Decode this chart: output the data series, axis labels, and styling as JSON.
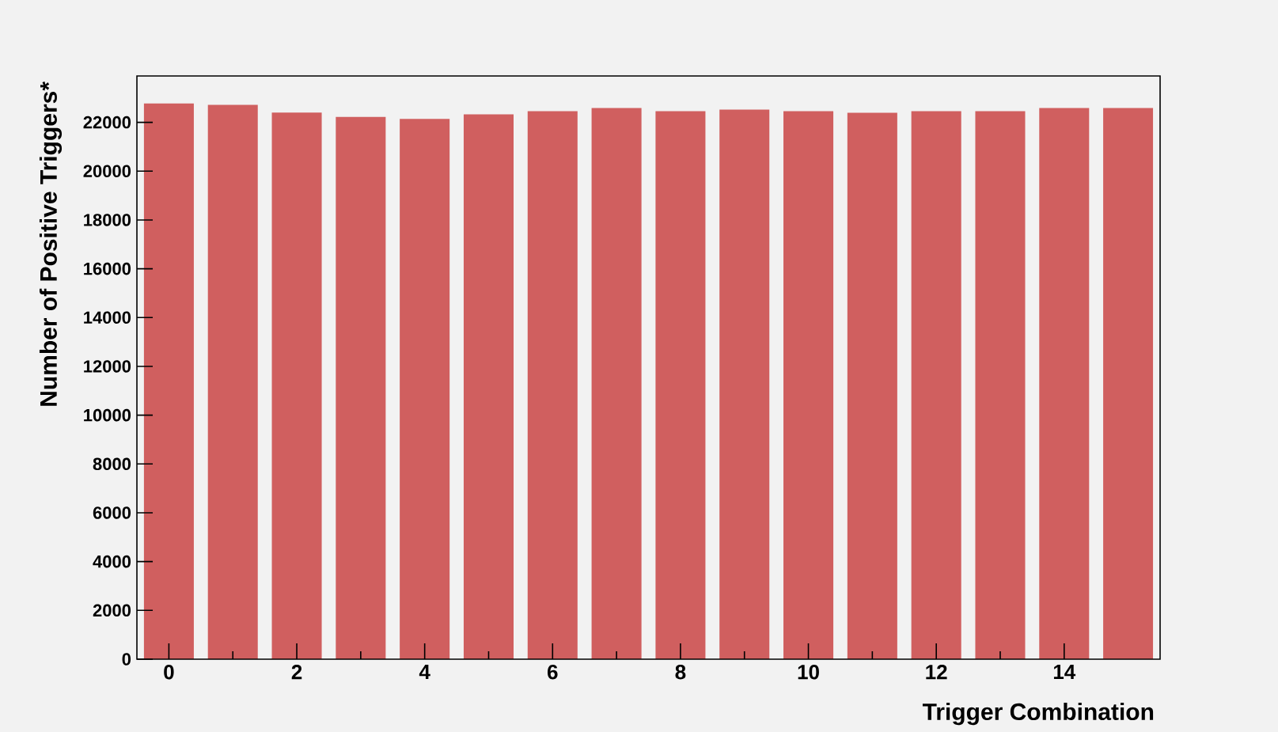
{
  "chart_data": {
    "type": "bar",
    "xlabel": "Trigger Combination",
    "ylabel": "Number of Positive Triggers*",
    "x": [
      0,
      1,
      2,
      3,
      4,
      5,
      6,
      7,
      8,
      9,
      10,
      11,
      12,
      13,
      14,
      15
    ],
    "values": [
      22780,
      22720,
      22400,
      22220,
      22140,
      22330,
      22460,
      22590,
      22460,
      22520,
      22460,
      22390,
      22460,
      22460,
      22590,
      22590
    ],
    "color": "#d05f5f",
    "xlim": [
      -0.5,
      15.5
    ],
    "ylim": [
      0,
      23900
    ],
    "xticks": [
      0,
      2,
      4,
      6,
      8,
      10,
      12,
      14
    ],
    "yticks": [
      0,
      2000,
      4000,
      6000,
      8000,
      10000,
      12000,
      14000,
      16000,
      18000,
      20000,
      22000
    ],
    "grid": false
  }
}
